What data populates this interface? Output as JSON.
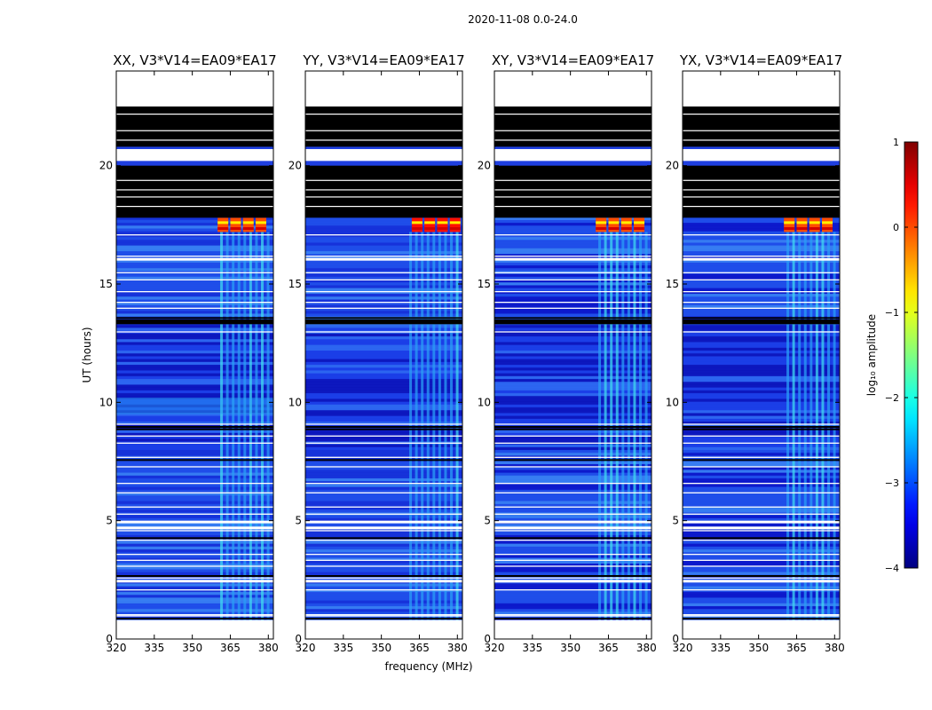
{
  "suptitle": "2020-11-08 0.0-24.0",
  "chart_data": {
    "type": "heatmap",
    "title": "2020-11-08 0.0-24.0",
    "xlabel": "frequency (MHz)",
    "ylabel": "UT (hours)",
    "xlim": [
      320,
      382
    ],
    "ylim": [
      0,
      24
    ],
    "xticks": [
      320,
      335,
      350,
      365,
      380
    ],
    "yticks": [
      0,
      5,
      10,
      15,
      20
    ],
    "panels": [
      {
        "title": "XX, V3*V14=EA09*EA17",
        "polarization": "XX"
      },
      {
        "title": "YY, V3*V14=EA09*EA17",
        "polarization": "YY"
      },
      {
        "title": "XY, V3*V14=EA09*EA17",
        "polarization": "XY"
      },
      {
        "title": "YX, V3*V14=EA09*EA17",
        "polarization": "YX"
      }
    ],
    "colorbar": {
      "label": "log₁₀ amplitude",
      "range": [
        -4,
        1
      ],
      "ticks": [
        "−4",
        "−3",
        "−2",
        "−1",
        "0",
        "1"
      ],
      "colormap": "jet"
    },
    "rfi_band_mhz": [
      360,
      380
    ],
    "rfi_channels_mhz": [
      365,
      370,
      375,
      380
    ],
    "strong_rfi_ut_hours": [
      17.2,
      17.8
    ],
    "flagged_black_ut_hours": [
      [
        17.8,
        20.0
      ],
      [
        20.8,
        22.5
      ],
      [
        13.3,
        13.5
      ]
    ],
    "blank_ut_hours": [
      [
        0,
        0.8
      ],
      [
        20.2,
        20.7
      ],
      [
        22.5,
        24
      ]
    ]
  }
}
